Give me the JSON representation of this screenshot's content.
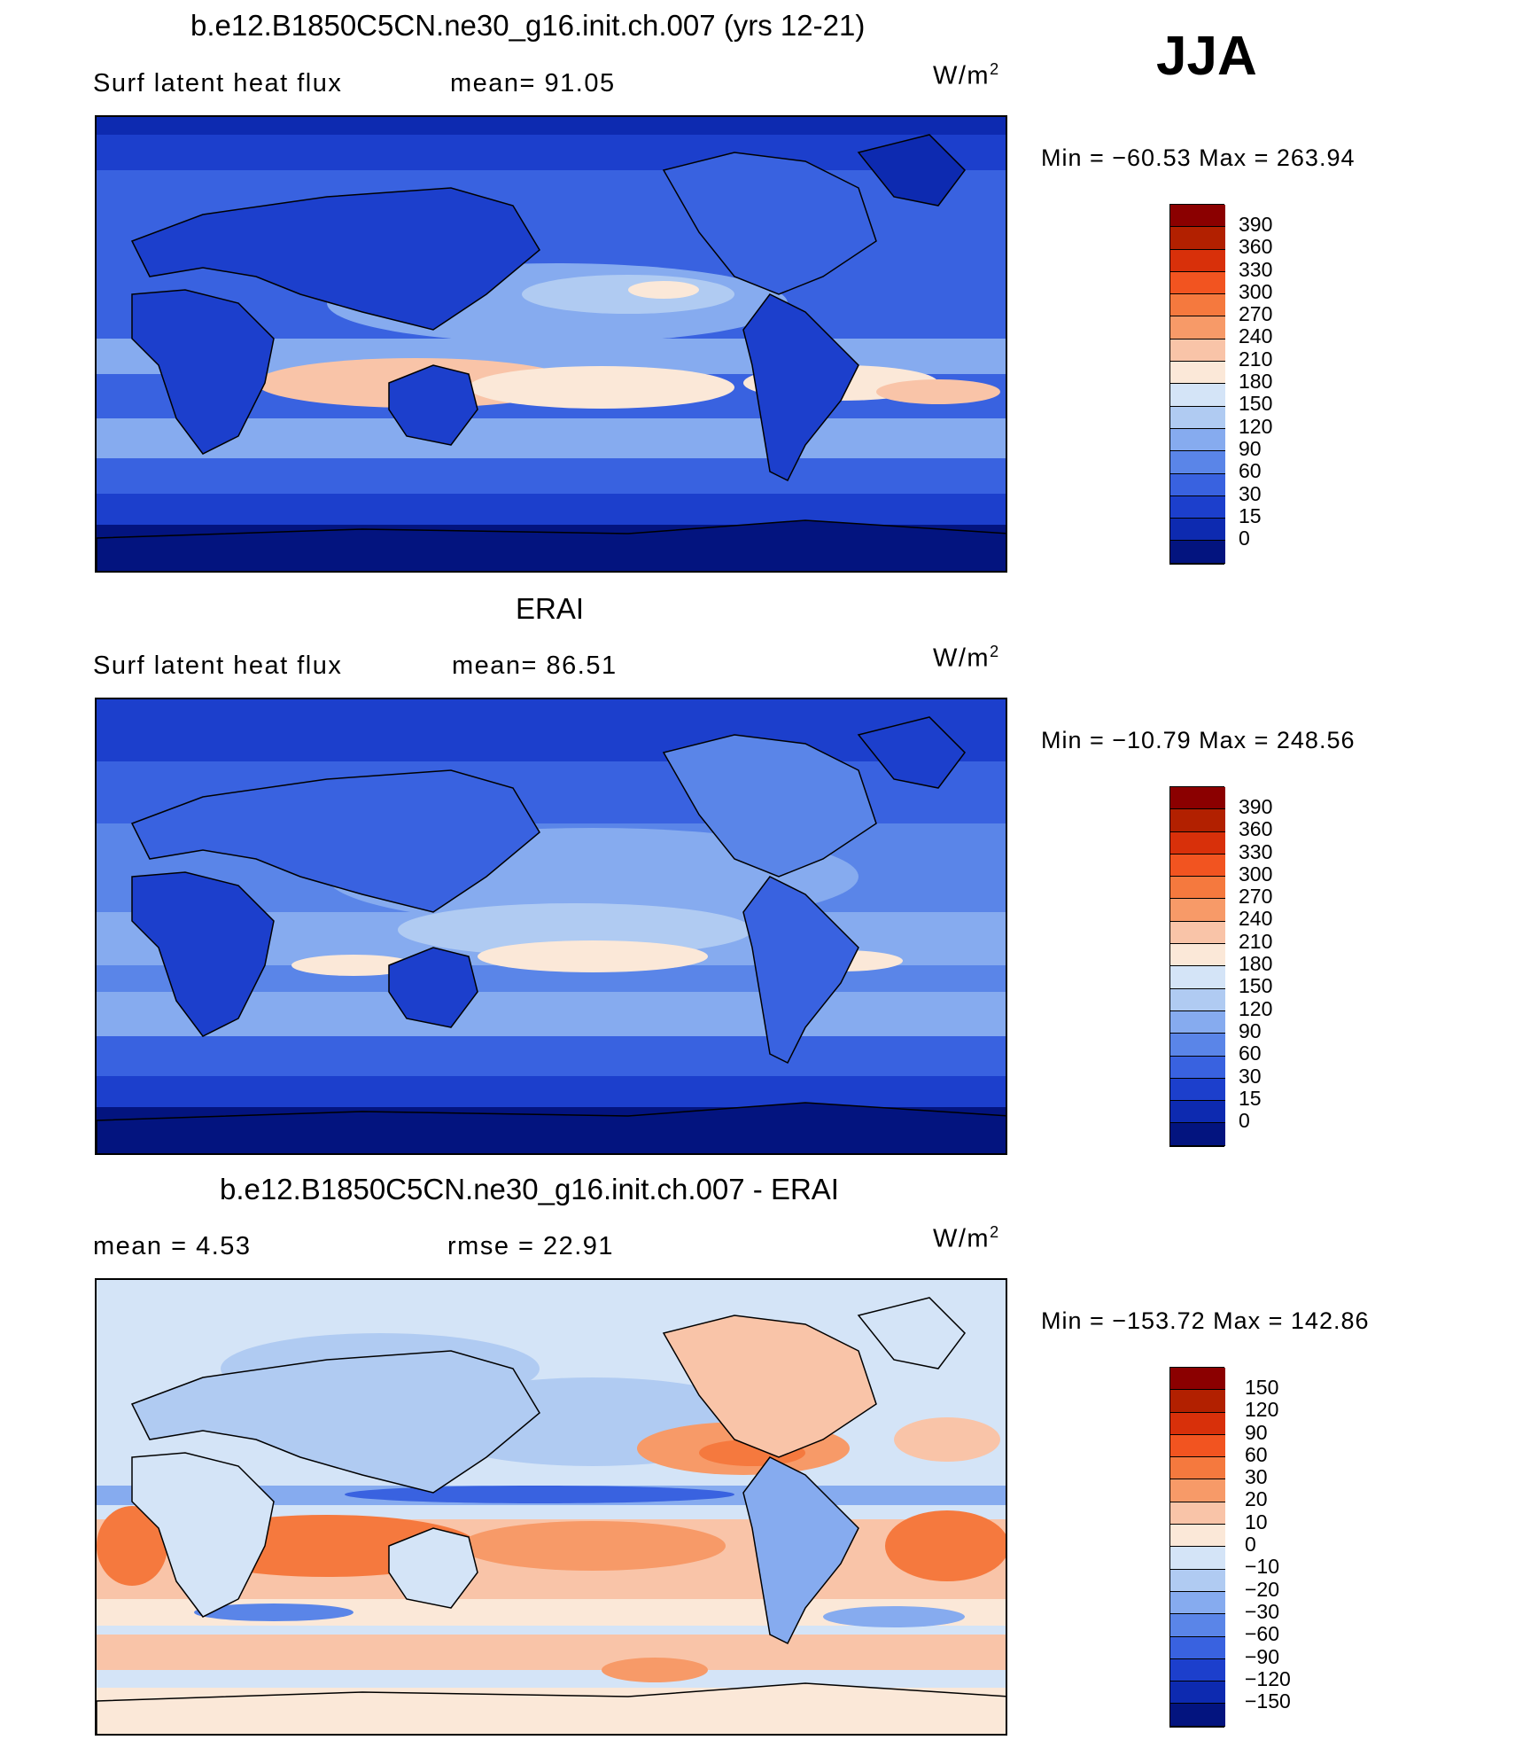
{
  "season": "JJA",
  "panels": [
    {
      "title": "b.e12.B1850C5CN.ne30_g16.init.ch.007 (yrs 12-21)",
      "left_label": "Surf  latent  heat  flux",
      "center_label": "mean=   91.05",
      "units_base": "W/m",
      "units_exp": "2",
      "minmax": "Min  =  −60.53  Max  =  263.94",
      "colorbar_levels": [
        "390",
        "360",
        "330",
        "300",
        "270",
        "240",
        "210",
        "180",
        "150",
        "120",
        "90",
        "60",
        "30",
        "15",
        "0"
      ],
      "colorbar_colors": [
        "#8b0000",
        "#b22000",
        "#d8300a",
        "#f25420",
        "#f5793e",
        "#f79a68",
        "#f9c4a8",
        "#fbe8d8",
        "#d4e4f7",
        "#b0cbf2",
        "#86abef",
        "#5a85e8",
        "#3962e0",
        "#1c3fcc",
        "#0d2ab0",
        "#03147f"
      ]
    },
    {
      "title": "ERAI",
      "left_label": "Surf  latent  heat  flux",
      "center_label": "mean=   86.51",
      "units_base": "W/m",
      "units_exp": "2",
      "minmax": "Min  =  −10.79  Max  =  248.56",
      "colorbar_levels": [
        "390",
        "360",
        "330",
        "300",
        "270",
        "240",
        "210",
        "180",
        "150",
        "120",
        "90",
        "60",
        "30",
        "15",
        "0"
      ],
      "colorbar_colors": [
        "#8b0000",
        "#b22000",
        "#d8300a",
        "#f25420",
        "#f5793e",
        "#f79a68",
        "#f9c4a8",
        "#fbe8d8",
        "#d4e4f7",
        "#b0cbf2",
        "#86abef",
        "#5a85e8",
        "#3962e0",
        "#1c3fcc",
        "#0d2ab0",
        "#03147f"
      ]
    },
    {
      "title": "b.e12.B1850C5CN.ne30_g16.init.ch.007 - ERAI",
      "left_label": "mean  =      4.53",
      "center_label": "rmse  =     22.91",
      "units_base": "W/m",
      "units_exp": "2",
      "minmax": "Min  =  −153.72  Max  =  142.86",
      "colorbar_levels": [
        "150",
        "120",
        "90",
        "60",
        "30",
        "20",
        "10",
        "0",
        "−10",
        "−20",
        "−30",
        "−60",
        "−90",
        "−120",
        "−150"
      ],
      "colorbar_colors": [
        "#8b0000",
        "#b22000",
        "#d8300a",
        "#f25420",
        "#f5793e",
        "#f79a68",
        "#f9c4a8",
        "#fbe8d8",
        "#d4e4f7",
        "#b0cbf2",
        "#86abef",
        "#5a85e8",
        "#3962e0",
        "#1c3fcc",
        "#0d2ab0",
        "#03147f"
      ]
    }
  ]
}
